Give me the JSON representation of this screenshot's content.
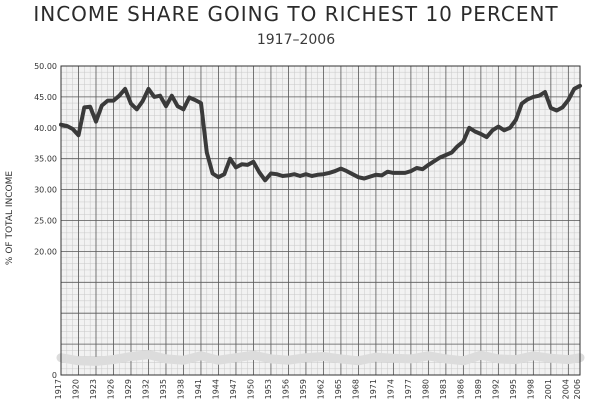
{
  "chart_data": {
    "type": "line",
    "title": "INCOME SHARE GOING TO RICHEST 10 PERCENT",
    "subtitle": "1917–2006",
    "xlabel": "",
    "ylabel": "% OF TOTAL INCOME",
    "ylim": [
      0,
      50
    ],
    "xlim": [
      1917,
      2006
    ],
    "grid": true,
    "y_tick_labels": [
      "0",
      "",
      "20.00",
      "25.00",
      "30.00",
      "35.00",
      "40.00",
      "45.00",
      "50.00"
    ],
    "y_ticks": [
      0,
      5,
      20,
      25,
      30,
      35,
      40,
      45,
      50
    ],
    "x_tick_labels": [
      "1917",
      "1920",
      "1923",
      "1926",
      "1929",
      "1932",
      "1935",
      "1938",
      "1941",
      "1944",
      "1947",
      "1950",
      "1953",
      "1956",
      "1959",
      "1962",
      "1965",
      "1968",
      "1971",
      "1974",
      "1977",
      "1980",
      "1983",
      "1986",
      "1989",
      "1992",
      "1995",
      "1998",
      "2001",
      "2004",
      "2006"
    ],
    "series": [
      {
        "name": "",
        "x": [
          1917,
          1918,
          1919,
          1920,
          1921,
          1922,
          1923,
          1924,
          1925,
          1926,
          1927,
          1928,
          1929,
          1930,
          1931,
          1932,
          1933,
          1934,
          1935,
          1936,
          1937,
          1938,
          1939,
          1940,
          1941,
          1942,
          1943,
          1944,
          1945,
          1946,
          1947,
          1948,
          1949,
          1950,
          1951,
          1952,
          1953,
          1954,
          1955,
          1956,
          1957,
          1958,
          1959,
          1960,
          1961,
          1962,
          1963,
          1964,
          1965,
          1966,
          1967,
          1968,
          1969,
          1970,
          1971,
          1972,
          1973,
          1974,
          1975,
          1976,
          1977,
          1978,
          1979,
          1980,
          1981,
          1982,
          1983,
          1984,
          1985,
          1986,
          1987,
          1988,
          1989,
          1990,
          1991,
          1992,
          1993,
          1994,
          1995,
          1996,
          1997,
          1998,
          1999,
          2000,
          2001,
          2002,
          2003,
          2004,
          2005,
          2006
        ],
        "y": [
          40.5,
          40.3,
          39.8,
          38.8,
          43.3,
          43.4,
          41.0,
          43.6,
          44.4,
          44.4,
          45.2,
          46.3,
          43.9,
          43.0,
          44.3,
          46.3,
          45.0,
          45.2,
          43.5,
          45.2,
          43.5,
          43.0,
          44.9,
          44.5,
          44.0,
          36.0,
          32.6,
          32.0,
          32.5,
          35.0,
          33.6,
          34.1,
          34.0,
          34.5,
          32.8,
          31.5,
          32.6,
          32.5,
          32.2,
          32.3,
          32.5,
          32.2,
          32.5,
          32.2,
          32.4,
          32.5,
          32.7,
          33.0,
          33.4,
          33.0,
          32.5,
          32.0,
          31.8,
          32.1,
          32.4,
          32.3,
          32.9,
          32.7,
          32.7,
          32.7,
          33.0,
          33.5,
          33.3,
          34.0,
          34.6,
          35.2,
          35.6,
          36.0,
          37.0,
          37.8,
          40.0,
          39.4,
          39.0,
          38.5,
          39.6,
          40.2,
          39.6,
          40.0,
          41.3,
          43.9,
          44.6,
          45.0,
          45.2,
          45.8,
          43.2,
          42.8,
          43.3,
          44.5,
          46.3,
          46.8
        ]
      },
      {
        "name": "",
        "x": [
          1917,
          1920,
          1923,
          1926,
          1929,
          1932,
          1935,
          1938,
          1941,
          1944,
          1947,
          1950,
          1953,
          1956,
          1959,
          1962,
          1965,
          1968,
          1971,
          1974,
          1977,
          1980,
          1983,
          1986,
          1989,
          1992,
          1995,
          1998,
          2001,
          2004,
          2006
        ],
        "y": [
          2.8,
          2.3,
          2.2,
          2.5,
          3.0,
          3.3,
          2.6,
          2.4,
          3.1,
          2.4,
          2.8,
          3.2,
          2.6,
          2.4,
          2.8,
          3.0,
          2.6,
          2.3,
          2.9,
          2.7,
          2.6,
          3.1,
          2.6,
          2.3,
          3.2,
          2.6,
          2.5,
          3.1,
          2.7,
          2.5,
          2.8
        ]
      }
    ],
    "colors": {
      "line": "#3a3a3a",
      "band": "#dcdcdc",
      "grid_major": "#5a5a5a",
      "grid_minor": "#c8c8c8",
      "background": "#f2f2f2"
    }
  }
}
